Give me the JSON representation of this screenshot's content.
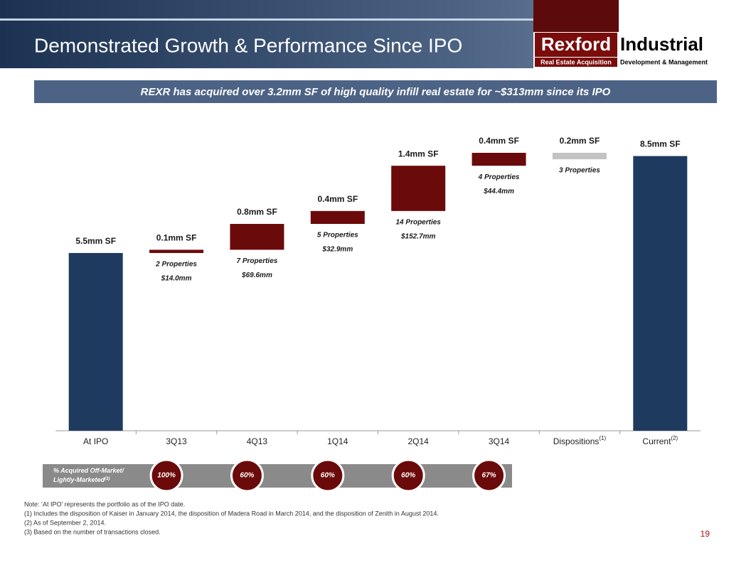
{
  "header": {
    "title": "Demonstrated Growth & Performance Since IPO",
    "logo_main": "Rexford",
    "logo_side": "Industrial",
    "logo_tag_left": "Real Estate Acquisition",
    "logo_tag_right": "Development & Management"
  },
  "banner": "REXR has acquired over 3.2mm SF of high quality infill real estate for ~$313mm since its IPO",
  "chart_data": {
    "type": "waterfall",
    "categories": [
      "At IPO",
      "3Q13",
      "4Q13",
      "1Q14",
      "2Q14",
      "3Q14",
      "Dispositions",
      "Current"
    ],
    "category_notes": [
      null,
      null,
      null,
      null,
      null,
      null,
      "(1)",
      "(2)"
    ],
    "values": [
      5.5,
      0.1,
      0.8,
      0.4,
      1.4,
      0.4,
      -0.2,
      8.5
    ],
    "value_labels": [
      "5.5mm SF",
      "0.1mm SF",
      "0.8mm SF",
      "0.4mm SF",
      "1.4mm SF",
      "0.4mm SF",
      "0.2mm SF",
      "8.5mm SF"
    ],
    "is_total": [
      true,
      false,
      false,
      false,
      false,
      false,
      false,
      true
    ],
    "details": [
      null,
      [
        "2 Properties",
        "$14.0mm"
      ],
      [
        "7 Properties",
        "$69.6mm"
      ],
      [
        "5 Properties",
        "$32.9mm"
      ],
      [
        "14 Properties",
        "$152.7mm"
      ],
      [
        "4 Properties",
        "$44.4mm"
      ],
      [
        "3 Properties"
      ],
      null
    ],
    "total_color": "#1f3a5f",
    "increase_color": "#6b0a0a",
    "decrease_color": "#c3c3c3"
  },
  "acquired_row": {
    "label": "% Acquired Off-Market/ Lightly-Marketed",
    "label_note": "(3)",
    "values": [
      null,
      "100%",
      "60%",
      "60%",
      "60%",
      "67%",
      null,
      null
    ]
  },
  "notes": [
    "Note: ‘At IPO’ represents the portfolio as of the IPO date.",
    "(1)    Includes the disposition of Kaiser in January 2014, the disposition of Madera Road in March 2014, and the disposition of Zenith in August 2014.",
    "(2)    As of September 2, 2014.",
    "(3)    Based on the number of transactions closed."
  ],
  "page_number": "19"
}
